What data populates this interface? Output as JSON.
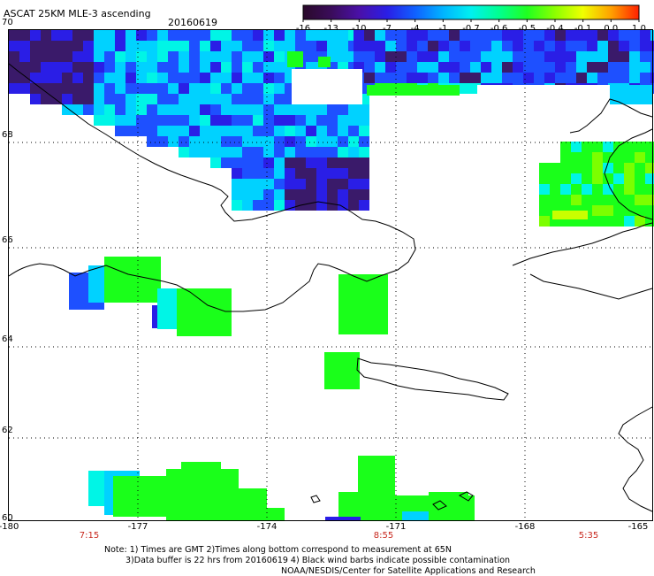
{
  "header": {
    "title": "ASCAT 25KM MLE-3 ascending",
    "date": "20160619"
  },
  "colorbar": {
    "ticks": [
      "-16",
      "-13",
      "-10",
      "-7",
      "-4",
      "-1",
      "-0.7",
      "-0.6",
      "-0.5",
      "-0.4",
      "-0.1",
      "0.0",
      "1.0"
    ],
    "colors": [
      "#2a0a2a",
      "#3a0c5a",
      "#4a10a8",
      "#2a1ee6",
      "#1060ff",
      "#00b4ff",
      "#00f0f0",
      "#00ff90",
      "#20ff20",
      "#8cff00",
      "#f0ff00",
      "#ffa000",
      "#ff2000"
    ]
  },
  "axes": {
    "lat_labels": [
      "70",
      "68",
      "66",
      "64",
      "62",
      "60"
    ],
    "lon_labels": [
      "-180",
      "-177",
      "-174",
      "-171",
      "-168",
      "-165"
    ],
    "time_labels": [
      "7:15",
      "8:55",
      "5:35"
    ]
  },
  "notes": {
    "line1": "Note: 1) Times are GMT 2)Times along bottom correspond to measurement at 65N",
    "line2": "3)Data buffer is 22 hrs from 20160619 4) Black wind barbs indicate possible contamination",
    "line3": "NOAA/NESDIS/Center for Satellite Applications and Research"
  },
  "colors": {
    "deep_purple": "#3a1a6a",
    "dark_blue": "#2a1ee6",
    "blue": "#1e50ff",
    "cyan": "#00d2ff",
    "aqua": "#00f5e6",
    "green": "#1aff1a",
    "lime": "#7cff00",
    "yellow_green": "#c8ff00"
  }
}
